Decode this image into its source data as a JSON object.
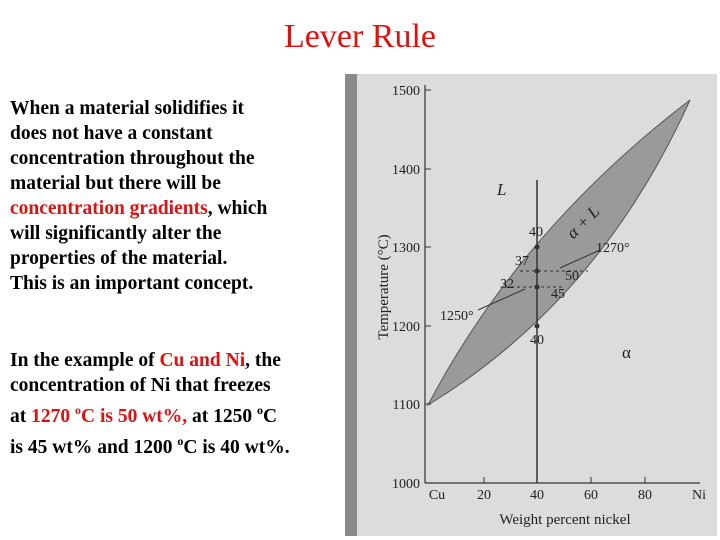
{
  "title": "Lever Rule",
  "paragraph1": [
    [
      {
        "text": "When a material solidifies it"
      }
    ],
    [
      {
        "text": "does not have a constant"
      }
    ],
    [
      {
        "text": "concentration throughout the"
      }
    ],
    [
      {
        "text": "material but there will be"
      }
    ],
    [
      {
        "text": "concentration gradients",
        "color": "#e01010"
      },
      {
        "text": ", which"
      }
    ],
    [
      {
        "text": "will significantly alter the"
      }
    ],
    [
      {
        "text": "properties of the material."
      }
    ],
    [
      {
        "text": "This is an important concept."
      }
    ]
  ],
  "paragraph2": [
    [
      {
        "text": "In the example of "
      },
      {
        "text": "Cu and Ni",
        "color": "#e01010"
      },
      {
        "text": ", the"
      }
    ],
    [
      {
        "text": "concentration of Ni that freezes"
      }
    ],
    [
      {
        "text": "at "
      },
      {
        "text": "1270 ",
        "color": "#e01010"
      },
      {
        "text": "o",
        "color": "#e01010",
        "sup": true
      },
      {
        "text": "C is 50 wt%,",
        "color": "#e01010"
      },
      {
        "text": " at 1250 "
      },
      {
        "text": "o",
        "sup": true
      },
      {
        "text": "C"
      }
    ],
    [
      {
        "text": "is 45 wt% and 1200 "
      },
      {
        "text": "o",
        "sup": true
      },
      {
        "text": "C is 40 wt%."
      }
    ]
  ],
  "figure": {
    "y_axis_label": "Temperature (°C)",
    "x_axis_label": "Weight percent nickel",
    "yticks": [
      "1500",
      "1400",
      "1300",
      "1200",
      "1100",
      "1000"
    ],
    "xticks": [
      "Cu",
      "20",
      "40",
      "60",
      "80",
      "Ni"
    ],
    "regions": [
      "L",
      "α + L",
      "α"
    ],
    "annotations": [
      "40",
      "37",
      "32",
      "50",
      "45",
      "40",
      "1270°",
      "1250°"
    ]
  }
}
